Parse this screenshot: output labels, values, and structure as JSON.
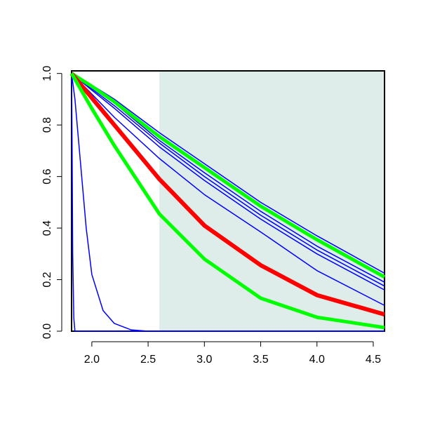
{
  "chart_data": {
    "type": "line",
    "xlim": [
      1.82,
      4.6
    ],
    "ylim": [
      0,
      1.01
    ],
    "xticks": [
      {
        "value": 2.0,
        "label": "2.0"
      },
      2.5,
      {
        "value": 3.0,
        "label": "3.0"
      },
      3.5,
      {
        "value": 4.0,
        "label": "4.0"
      },
      4.5
    ],
    "yticks": [
      {
        "value": 0,
        "label": "0.0"
      },
      0.2,
      0.4,
      0.6,
      0.8,
      {
        "value": 1.0,
        "label": "1.0"
      }
    ],
    "shaded_region": {
      "x": [
        2.6,
        4.6
      ],
      "color": "#deecea"
    },
    "series": [
      {
        "color": "#0000ff",
        "lwd": 1.5,
        "x": [
          1.82,
          1.825,
          1.83,
          1.84,
          1.85,
          4.6
        ],
        "values": [
          1,
          0.7,
          0.3,
          0.05,
          0,
          0
        ]
      },
      {
        "color": "#0000ff",
        "lwd": 1.5,
        "x": [
          1.82,
          1.85,
          1.9,
          1.95,
          2.0,
          2.1,
          2.2,
          2.35,
          2.5,
          4.6
        ],
        "values": [
          1,
          0.9,
          0.65,
          0.4,
          0.22,
          0.08,
          0.03,
          0.005,
          0,
          0
        ]
      },
      {
        "color": "#0000ff",
        "lwd": 1.5,
        "x": [
          1.82,
          2.0,
          2.2,
          2.6,
          3.0,
          3.5,
          4.0,
          4.6
        ],
        "values": [
          1,
          0.92,
          0.83,
          0.67,
          0.53,
          0.385,
          0.235,
          0.1
        ]
      },
      {
        "color": "#0000ff",
        "lwd": 1.5,
        "x": [
          1.82,
          2.0,
          2.2,
          2.6,
          3.0,
          3.5,
          4.0,
          4.6
        ],
        "values": [
          1,
          0.935,
          0.865,
          0.715,
          0.585,
          0.435,
          0.3,
          0.16
        ]
      },
      {
        "color": "#0000ff",
        "lwd": 1.5,
        "x": [
          1.82,
          2.0,
          2.2,
          2.6,
          3.0,
          3.5,
          4.0,
          4.6
        ],
        "values": [
          1,
          0.94,
          0.875,
          0.73,
          0.6,
          0.45,
          0.315,
          0.175
        ]
      },
      {
        "color": "#0000ff",
        "lwd": 1.5,
        "x": [
          1.82,
          2.0,
          2.2,
          2.6,
          3.0,
          3.5,
          4.0,
          4.6
        ],
        "values": [
          1,
          0.945,
          0.885,
          0.74,
          0.615,
          0.465,
          0.33,
          0.19
        ]
      },
      {
        "color": "#0000ff",
        "lwd": 1.5,
        "x": [
          1.82,
          2.0,
          2.2,
          2.6,
          3.0,
          3.5,
          4.0,
          4.6
        ],
        "values": [
          1,
          0.955,
          0.9,
          0.77,
          0.65,
          0.5,
          0.37,
          0.225
        ]
      },
      {
        "color": "#00ff00",
        "lwd": 5,
        "x": [
          1.82,
          2.0,
          2.2,
          2.6,
          3.0,
          3.5,
          4.0,
          4.6
        ],
        "values": [
          1,
          0.95,
          0.89,
          0.755,
          0.635,
          0.485,
          0.355,
          0.21
        ]
      },
      {
        "color": "#ff0000",
        "lwd": 6,
        "x": [
          1.82,
          2.0,
          2.2,
          2.6,
          3.0,
          3.5,
          4.0,
          4.6
        ],
        "values": [
          1,
          0.905,
          0.8,
          0.59,
          0.41,
          0.256,
          0.14,
          0.065
        ]
      },
      {
        "color": "#00ff00",
        "lwd": 5,
        "x": [
          1.82,
          2.0,
          2.2,
          2.6,
          3.0,
          3.5,
          4.0,
          4.6
        ],
        "values": [
          1,
          0.864,
          0.72,
          0.455,
          0.28,
          0.128,
          0.054,
          0.014
        ]
      }
    ]
  }
}
